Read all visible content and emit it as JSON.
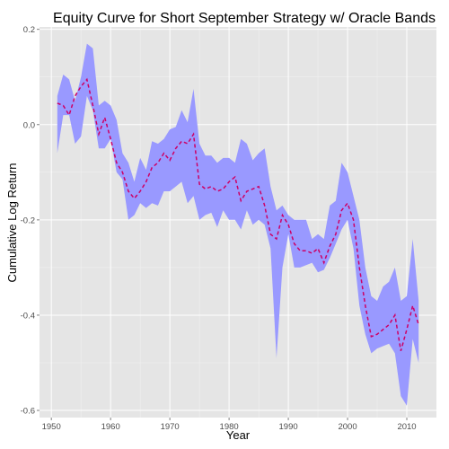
{
  "chart_data": {
    "type": "area",
    "title": "Equity Curve for Short September Strategy w/ Oracle Bands",
    "xlabel": "Year",
    "ylabel": "Cumulative Log Return",
    "xlim": [
      1948,
      2015
    ],
    "ylim": [
      -0.615,
      0.205
    ],
    "x_ticks": [
      1950,
      1960,
      1970,
      1980,
      1990,
      2000,
      2010
    ],
    "y_ticks": [
      0.2,
      0.0,
      -0.2,
      -0.4,
      -0.6
    ],
    "y_tick_labels": [
      "0.2",
      "0.0",
      "-0.2",
      "-0.4",
      "-0.6"
    ],
    "grid": true,
    "background": "#e5e5e5",
    "band_color": "#9999ff",
    "line_color": "#cc0066",
    "x": [
      1951,
      1952,
      1953,
      1954,
      1955,
      1956,
      1957,
      1958,
      1959,
      1960,
      1961,
      1962,
      1963,
      1964,
      1965,
      1966,
      1967,
      1968,
      1969,
      1970,
      1971,
      1972,
      1973,
      1974,
      1975,
      1976,
      1977,
      1978,
      1979,
      1980,
      1981,
      1982,
      1983,
      1984,
      1985,
      1986,
      1987,
      1988,
      1989,
      1990,
      1991,
      1992,
      1993,
      1994,
      1995,
      1996,
      1997,
      1998,
      1999,
      2000,
      2001,
      2002,
      2003,
      2004,
      2005,
      2006,
      2007,
      2008,
      2009,
      2010,
      2011,
      2012
    ],
    "series": [
      {
        "role": "upper",
        "values": [
          0.06,
          0.105,
          0.095,
          0.05,
          0.1,
          0.17,
          0.16,
          0.04,
          0.05,
          0.04,
          0.01,
          -0.06,
          -0.08,
          -0.12,
          -0.07,
          -0.095,
          -0.035,
          -0.04,
          -0.03,
          -0.01,
          -0.005,
          0.03,
          0.005,
          0.075,
          -0.04,
          -0.065,
          -0.065,
          -0.08,
          -0.07,
          -0.07,
          -0.08,
          -0.03,
          -0.04,
          -0.075,
          -0.06,
          -0.05,
          -0.13,
          -0.18,
          -0.17,
          -0.19,
          -0.2,
          -0.2,
          -0.2,
          -0.24,
          -0.23,
          -0.24,
          -0.17,
          -0.16,
          -0.08,
          -0.1,
          -0.15,
          -0.2,
          -0.3,
          -0.36,
          -0.37,
          -0.34,
          -0.33,
          -0.3,
          -0.37,
          -0.36,
          -0.24,
          -0.37
        ]
      },
      {
        "role": "lower",
        "values": [
          -0.06,
          0.02,
          0.02,
          -0.04,
          -0.025,
          0.06,
          0.03,
          -0.05,
          -0.05,
          -0.03,
          -0.1,
          -0.115,
          -0.2,
          -0.19,
          -0.165,
          -0.175,
          -0.165,
          -0.17,
          -0.14,
          -0.14,
          -0.13,
          -0.12,
          -0.165,
          -0.15,
          -0.2,
          -0.19,
          -0.185,
          -0.215,
          -0.18,
          -0.2,
          -0.2,
          -0.22,
          -0.18,
          -0.21,
          -0.2,
          -0.21,
          -0.26,
          -0.49,
          -0.3,
          -0.23,
          -0.3,
          -0.3,
          -0.295,
          -0.29,
          -0.31,
          -0.305,
          -0.28,
          -0.25,
          -0.22,
          -0.2,
          -0.26,
          -0.38,
          -0.44,
          -0.48,
          -0.47,
          -0.465,
          -0.46,
          -0.48,
          -0.57,
          -0.59,
          -0.45,
          -0.5
        ]
      },
      {
        "role": "equity",
        "values": [
          0.045,
          0.04,
          0.02,
          0.06,
          0.08,
          0.095,
          0.04,
          -0.02,
          0.015,
          -0.03,
          -0.08,
          -0.1,
          -0.14,
          -0.155,
          -0.14,
          -0.12,
          -0.09,
          -0.08,
          -0.06,
          -0.075,
          -0.05,
          -0.035,
          -0.04,
          -0.02,
          -0.125,
          -0.135,
          -0.13,
          -0.14,
          -0.135,
          -0.12,
          -0.11,
          -0.16,
          -0.14,
          -0.135,
          -0.13,
          -0.17,
          -0.23,
          -0.24,
          -0.19,
          -0.21,
          -0.25,
          -0.265,
          -0.265,
          -0.27,
          -0.26,
          -0.29,
          -0.255,
          -0.23,
          -0.18,
          -0.165,
          -0.2,
          -0.3,
          -0.38,
          -0.445,
          -0.44,
          -0.43,
          -0.42,
          -0.4,
          -0.475,
          -0.43,
          -0.38,
          -0.42
        ]
      }
    ]
  }
}
